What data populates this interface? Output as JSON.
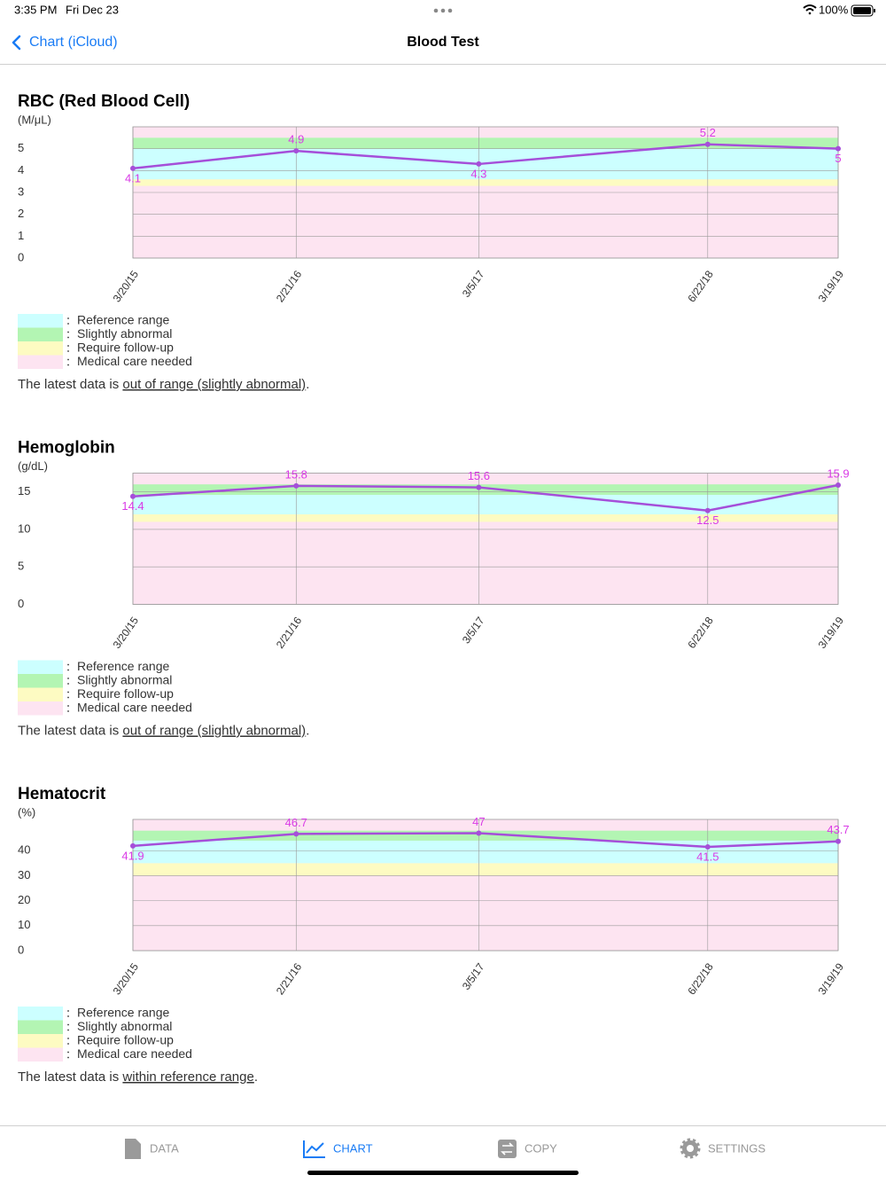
{
  "status_bar": {
    "time": "3:35 PM",
    "date": "Fri Dec 23",
    "battery": "100%"
  },
  "nav": {
    "back": "Chart (iCloud)",
    "title": "Blood Test"
  },
  "chart_data": [
    {
      "type": "line",
      "title": "RBC (Red Blood Cell)",
      "y_label": "(M/μL)",
      "x": [
        "3/20/15",
        "2/21/16",
        "3/5/17",
        "6/22/18",
        "3/19/19"
      ],
      "series": [
        {
          "color": "#a54fd9",
          "label_color": "#d93ae6",
          "values": [
            4.1,
            4.9,
            4.3,
            5.2,
            5
          ]
        }
      ],
      "ylim": [
        0,
        6
      ],
      "yticks": [
        0,
        1,
        2,
        3,
        4,
        5
      ],
      "grid": true,
      "ranges": [
        {
          "name": "Reference range",
          "color": "#ccffff",
          "spans": [
            [
              3.6,
              5.0
            ]
          ]
        },
        {
          "name": "Slightly abnormal",
          "color": "#b3f5b3",
          "spans": [
            [
              5.0,
              5.5
            ]
          ]
        },
        {
          "name": "Require follow-up",
          "color": "#fdfbc2",
          "spans": [
            [
              3.3,
              3.6
            ]
          ]
        },
        {
          "name": "Medical care needed",
          "color": "#fde4f1",
          "spans": [
            [
              0,
              6
            ]
          ]
        }
      ],
      "note": {
        "text": "The latest data is",
        "link": "out of range (slightly abnormal)",
        "end": "."
      }
    },
    {
      "type": "line",
      "title": "Hemoglobin",
      "y_label": "(g/dL)",
      "x": [
        "3/20/15",
        "2/21/16",
        "3/5/17",
        "6/22/18",
        "3/19/19"
      ],
      "series": [
        {
          "color": "#a54fd9",
          "label_color": "#d93ae6",
          "values": [
            14.4,
            15.8,
            15.6,
            12.5,
            15.9
          ]
        }
      ],
      "ylim": [
        0,
        17.5
      ],
      "yticks": [
        0,
        5,
        10,
        15
      ],
      "grid": true,
      "ranges": [
        {
          "name": "Reference range",
          "color": "#ccffff",
          "spans": [
            [
              12,
              14.6
            ]
          ]
        },
        {
          "name": "Slightly abnormal",
          "color": "#b3f5b3",
          "spans": [
            [
              14.6,
              16
            ]
          ]
        },
        {
          "name": "Require follow-up",
          "color": "#fdfbc2",
          "spans": [
            [
              11,
              12
            ]
          ]
        },
        {
          "name": "Medical care needed",
          "color": "#fde4f1",
          "spans": [
            [
              0,
              17.5
            ]
          ]
        }
      ],
      "note": {
        "text": "The latest data is",
        "link": "out of range (slightly abnormal)",
        "end": "."
      }
    },
    {
      "type": "line",
      "title": "Hematocrit",
      "y_label": "(%)",
      "x": [
        "3/20/15",
        "2/21/16",
        "3/5/17",
        "6/22/18",
        "3/19/19"
      ],
      "series": [
        {
          "color": "#a54fd9",
          "label_color": "#d93ae6",
          "values": [
            41.9,
            46.7,
            47,
            41.5,
            43.7
          ]
        }
      ],
      "ylim": [
        0,
        52.5
      ],
      "yticks": [
        0,
        10,
        20,
        30,
        40
      ],
      "grid": true,
      "ranges": [
        {
          "name": "Reference range",
          "color": "#ccffff",
          "spans": [
            [
              35,
              44
            ]
          ]
        },
        {
          "name": "Slightly abnormal",
          "color": "#b3f5b3",
          "spans": [
            [
              44,
              48
            ]
          ]
        },
        {
          "name": "Require follow-up",
          "color": "#fdfbc2",
          "spans": [
            [
              30,
              35
            ]
          ]
        },
        {
          "name": "Medical care needed",
          "color": "#fde4f1",
          "spans": [
            [
              0,
              52.5
            ]
          ]
        }
      ],
      "note": {
        "text": "The latest data is",
        "link": "within reference range",
        "end": "."
      }
    }
  ],
  "tab_bar": {
    "tabs": [
      "DATA",
      "CHART",
      "COPY",
      "SETTINGS"
    ],
    "active": 1
  }
}
